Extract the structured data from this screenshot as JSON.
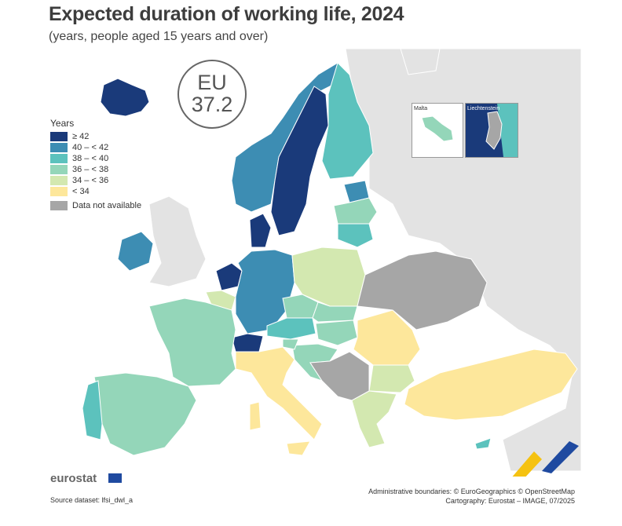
{
  "title": "Expected duration of working life, 2024",
  "subtitle": "(years, people aged 15 years and over)",
  "eu_badge": {
    "line1": "EU",
    "line2": "37.2"
  },
  "legend": {
    "title": "Years",
    "items": [
      {
        "label": "≥ 42",
        "color": "#1a3a7a"
      },
      {
        "label": "40 – < 42",
        "color": "#3d8db3"
      },
      {
        "label": "38 – < 40",
        "color": "#5cc2bd"
      },
      {
        "label": "36 – < 38",
        "color": "#94d6b9"
      },
      {
        "label": "34 – < 36",
        "color": "#d3e8b0"
      },
      {
        "label": "< 34",
        "color": "#fde79b"
      }
    ],
    "na_label": "Data not available",
    "na_color": "#a6a6a6"
  },
  "insets": {
    "malta": "Malta",
    "liechtenstein": "Liechtenstein"
  },
  "brand": "eurostat",
  "source": "Source dataset: lfsi_dwl_a",
  "credits": {
    "line1": "Administrative boundaries: © EuroGeographics © OpenStreetMap",
    "line2": "Cartography: Eurostat – IMAGE, 07/2025"
  }
}
